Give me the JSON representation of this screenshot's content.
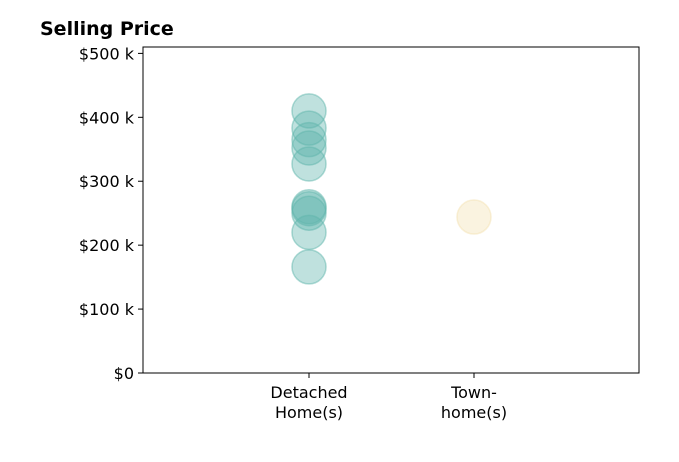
{
  "chart_data": {
    "type": "scatter",
    "title": "Selling Price",
    "xlabel": "",
    "ylabel": "",
    "categories": [
      [
        "Detached",
        "Home(s)"
      ],
      [
        "Town-",
        "home(s)"
      ]
    ],
    "ylim": [
      0,
      510000
    ],
    "yticks": [
      {
        "value": 0,
        "label": "$0"
      },
      {
        "value": 100000,
        "label": "$100 k"
      },
      {
        "value": 200000,
        "label": "$200 k"
      },
      {
        "value": 300000,
        "label": "$300 k"
      },
      {
        "value": 400000,
        "label": "$400 k"
      },
      {
        "value": 500000,
        "label": "$500 k"
      }
    ],
    "grid": false,
    "legend": "none",
    "series": [
      {
        "category_index": 0,
        "color": "#5fb5ac",
        "values": [
          410000,
          383000,
          365000,
          352000,
          327000,
          260000,
          257000,
          250000,
          220000,
          166000
        ]
      },
      {
        "category_index": 1,
        "color": "#f3e2b2",
        "values": [
          244000
        ]
      }
    ]
  }
}
